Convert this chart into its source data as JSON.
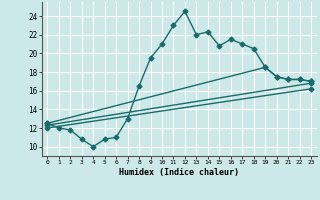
{
  "xlabel": "Humidex (Indice chaleur)",
  "bg_color": "#cce8e8",
  "line_color": "#1a6b6b",
  "grid_color": "#ffffff",
  "xlim": [
    -0.5,
    23.5
  ],
  "ylim": [
    9,
    25.5
  ],
  "xticks": [
    0,
    1,
    2,
    3,
    4,
    5,
    6,
    7,
    8,
    9,
    10,
    11,
    12,
    13,
    14,
    15,
    16,
    17,
    18,
    19,
    20,
    21,
    22,
    23
  ],
  "yticks": [
    10,
    12,
    14,
    16,
    18,
    20,
    22,
    24
  ],
  "line1_x": [
    0,
    1,
    2,
    3,
    4,
    5,
    6,
    7,
    8,
    9,
    10,
    11,
    12,
    13,
    14,
    15,
    16,
    17,
    18,
    19,
    20,
    21,
    22,
    23
  ],
  "line1_y": [
    12.5,
    12,
    11.8,
    10.8,
    10,
    10.8,
    11,
    13,
    16.5,
    19.5,
    21,
    23,
    24.5,
    22,
    22.3,
    20.8,
    21.5,
    21,
    20.5,
    18.5,
    17.5,
    17.2,
    17.2,
    17
  ],
  "line2_x": [
    0,
    19,
    20,
    21,
    22,
    23
  ],
  "line2_y": [
    12.5,
    18.5,
    17.5,
    17.2,
    17.2,
    17.0
  ],
  "line3_x": [
    0,
    23
  ],
  "line3_y": [
    12.3,
    16.8
  ],
  "line4_x": [
    0,
    23
  ],
  "line4_y": [
    12.0,
    16.2
  ],
  "marker": "D",
  "markersize": 2.5,
  "linewidth": 1.0
}
